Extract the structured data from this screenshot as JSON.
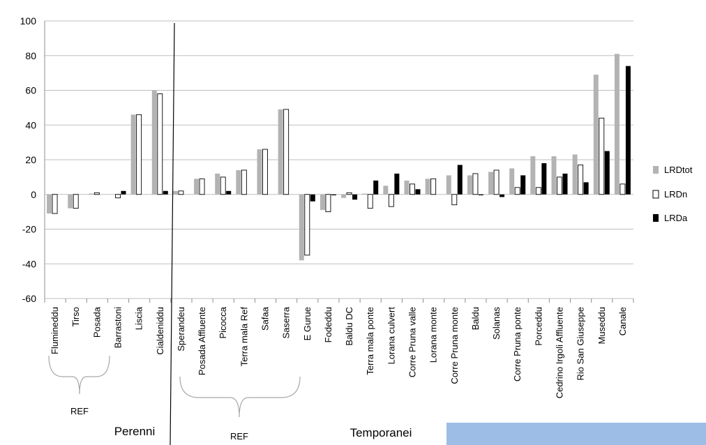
{
  "chart_data": {
    "type": "bar",
    "ylim": [
      -60,
      100
    ],
    "yticks": [
      -60,
      -40,
      -20,
      0,
      20,
      40,
      60,
      80,
      100
    ],
    "grid": true,
    "legend_position": "right",
    "categories": [
      "Flumineddu",
      "Tirso",
      "Posada",
      "Barrastoni",
      "Liscia",
      "Cialdeniddu",
      "Sperandeu",
      "Posada Affluente",
      "Picocca",
      "Terra mala Ref",
      "Safaa",
      "Saserra",
      "E Gurue",
      "Fodeddu",
      "Baldu DC",
      "Terra mala ponte",
      "Lorana culvert",
      "Corre Pruna valle",
      "Lorana monte",
      "Corre Pruna monte",
      "Baldu",
      "Solanas",
      "Corre Pruna ponte",
      "Porceddu",
      "Cedrino Irgoli Affluente",
      "Rio San Giuseppe",
      "Museddu",
      "Canale"
    ],
    "series": [
      {
        "name": "LRDtot",
        "color": "#b3b3b3",
        "values": [
          -11,
          -8,
          0.5,
          0,
          46,
          60,
          2,
          9,
          12,
          14,
          26,
          49,
          -38,
          -9,
          -2,
          0.5,
          5,
          8,
          9,
          11,
          11,
          13,
          15,
          22,
          22,
          23,
          69,
          81
        ]
      },
      {
        "name": "LRDn",
        "color": "#ffffff",
        "values": [
          -11,
          -8,
          1,
          -2,
          46,
          58,
          2,
          9,
          10,
          14,
          26,
          49,
          -35,
          -10,
          1,
          -8,
          -7,
          6,
          9,
          -6,
          12,
          14,
          4,
          4,
          10,
          17,
          44,
          6
        ]
      },
      {
        "name": "LRDa",
        "color": "#000000",
        "values": [
          0,
          0,
          0,
          2,
          0,
          2,
          0,
          0,
          2,
          0,
          0,
          0,
          -4,
          -0.5,
          -3,
          8,
          12,
          3,
          0,
          17,
          -0.5,
          -1.5,
          11,
          18,
          12,
          7,
          25,
          74
        ]
      }
    ],
    "groups": [
      {
        "label": "Perenni",
        "ref_label": "REF"
      },
      {
        "label": "Temporanei",
        "ref_label": "REF"
      }
    ]
  }
}
